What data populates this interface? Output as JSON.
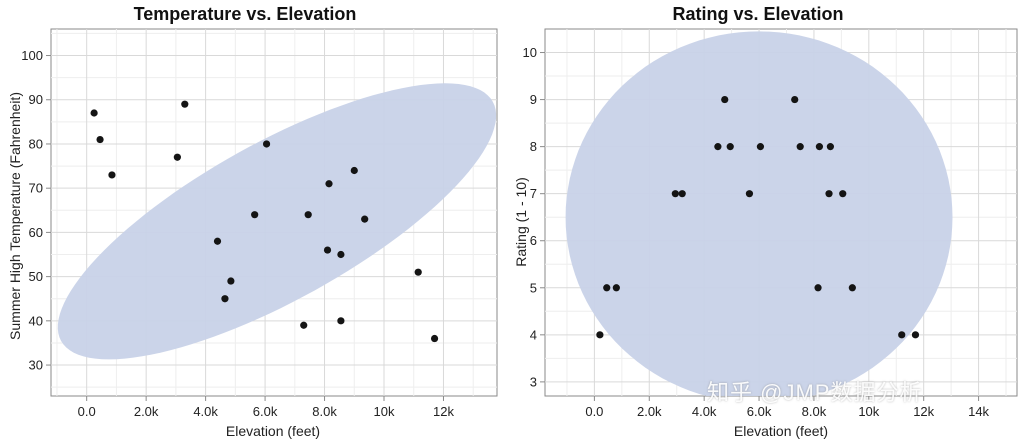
{
  "chart_data": [
    {
      "type": "scatter",
      "title": "Temperature vs. Elevation",
      "xlabel": "Elevation (feet)",
      "ylabel": "Summer High Temperature (Fahrenheit)",
      "xlim": [
        -1200,
        13800
      ],
      "ylim": [
        23,
        106
      ],
      "xticks": [
        0,
        2000,
        4000,
        6000,
        8000,
        10000,
        12000
      ],
      "xtick_labels": [
        "0.0",
        "2.0k",
        "4.0k",
        "6.0k",
        "8.0k",
        "10k",
        "12k"
      ],
      "yticks": [
        30,
        40,
        50,
        60,
        70,
        80,
        90,
        100
      ],
      "ytick_labels": [
        "30",
        "40",
        "50",
        "60",
        "70",
        "80",
        "90",
        "100"
      ],
      "grid": true,
      "ellipse_color": "#c8d2e8",
      "ellipse": {
        "cx": 6400,
        "cy": 62.5,
        "rx": 8300,
        "ry": 17.8,
        "angle": -29
      },
      "points": [
        {
          "x": 250,
          "y": 87
        },
        {
          "x": 450,
          "y": 81
        },
        {
          "x": 850,
          "y": 73
        },
        {
          "x": 3050,
          "y": 77
        },
        {
          "x": 3300,
          "y": 89
        },
        {
          "x": 4400,
          "y": 58
        },
        {
          "x": 4650,
          "y": 45
        },
        {
          "x": 4850,
          "y": 49
        },
        {
          "x": 5650,
          "y": 64
        },
        {
          "x": 6050,
          "y": 80
        },
        {
          "x": 7300,
          "y": 39
        },
        {
          "x": 7450,
          "y": 64
        },
        {
          "x": 8100,
          "y": 56
        },
        {
          "x": 8150,
          "y": 71
        },
        {
          "x": 8550,
          "y": 40
        },
        {
          "x": 8550,
          "y": 55
        },
        {
          "x": 9000,
          "y": 74
        },
        {
          "x": 9350,
          "y": 63
        },
        {
          "x": 11150,
          "y": 51
        },
        {
          "x": 11700,
          "y": 36
        }
      ]
    },
    {
      "type": "scatter",
      "title": "Rating vs. Elevation",
      "xlabel": "Elevation (feet)",
      "ylabel": "Rating (1 - 10)",
      "xlim": [
        -1800,
        15400
      ],
      "ylim": [
        2.7,
        10.5
      ],
      "xticks": [
        0,
        2000,
        4000,
        6000,
        8000,
        10000,
        12000,
        14000
      ],
      "xtick_labels": [
        "0.0",
        "2.0k",
        "4.0k",
        "6.0k",
        "8.0k",
        "10k",
        "12k",
        "14k"
      ],
      "yticks": [
        3,
        4,
        5,
        6,
        7,
        8,
        9,
        10
      ],
      "ytick_labels": [
        "3",
        "4",
        "5",
        "6",
        "7",
        "8",
        "9",
        "10"
      ],
      "grid": true,
      "ellipse_color": "#c8d2e8",
      "ellipse": {
        "cx": 6000,
        "cy": 6.5,
        "rx": 7050,
        "ry": 3.95,
        "angle": 0
      },
      "points": [
        {
          "x": 200,
          "y": 4
        },
        {
          "x": 450,
          "y": 5
        },
        {
          "x": 800,
          "y": 5
        },
        {
          "x": 2950,
          "y": 7
        },
        {
          "x": 3200,
          "y": 7
        },
        {
          "x": 4500,
          "y": 8
        },
        {
          "x": 4750,
          "y": 9
        },
        {
          "x": 4950,
          "y": 8
        },
        {
          "x": 5650,
          "y": 7
        },
        {
          "x": 6050,
          "y": 8
        },
        {
          "x": 7300,
          "y": 9
        },
        {
          "x": 7500,
          "y": 8
        },
        {
          "x": 8150,
          "y": 5
        },
        {
          "x": 8200,
          "y": 8
        },
        {
          "x": 8550,
          "y": 7
        },
        {
          "x": 8600,
          "y": 8
        },
        {
          "x": 9050,
          "y": 7
        },
        {
          "x": 9400,
          "y": 5
        },
        {
          "x": 11200,
          "y": 4
        },
        {
          "x": 11700,
          "y": 4
        }
      ]
    }
  ],
  "watermark": {
    "text": "知乎 @JMP数据分析"
  }
}
